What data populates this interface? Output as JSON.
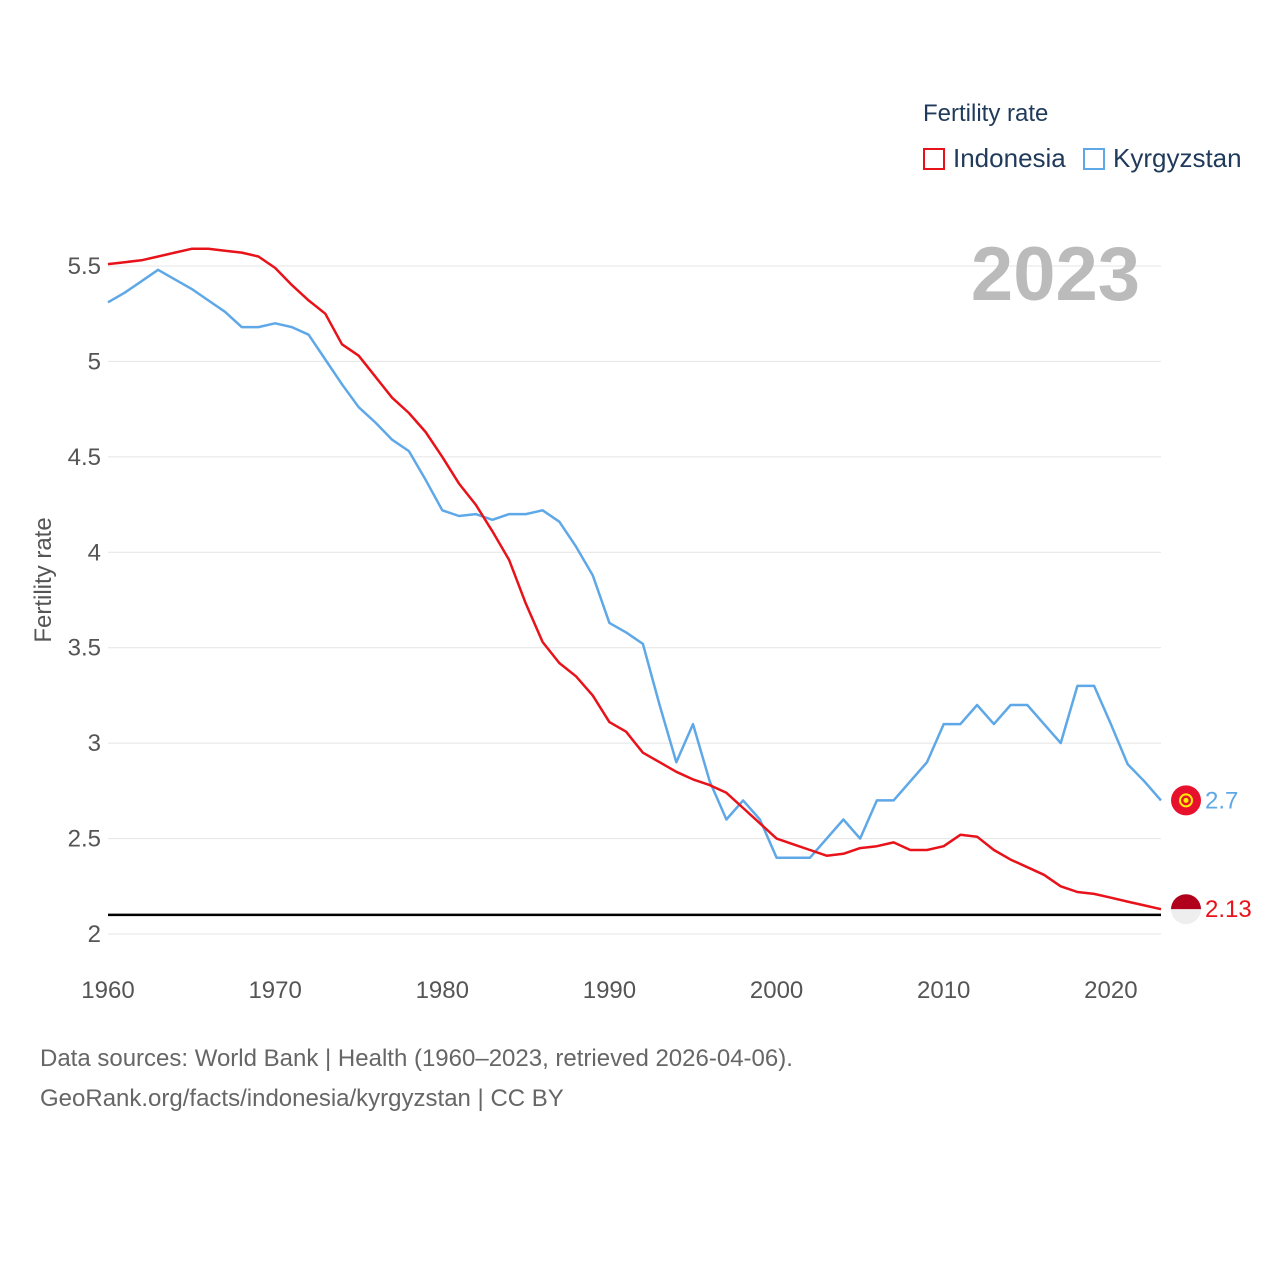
{
  "legend": {
    "title": "Fertility rate",
    "items": [
      {
        "label": "Indonesia",
        "color": "#e8131a"
      },
      {
        "label": "Kyrgyzstan",
        "color": "#5fa8e8"
      }
    ]
  },
  "year_label": "2023",
  "source": {
    "line1": "Data sources: World Bank | Health (1960–2023, retrieved 2026-04-06).",
    "line2": "GeoRank.org/facts/indonesia/kyrgyzstan | CC BY"
  },
  "chart_data": {
    "type": "line",
    "title": "Fertility rate",
    "xlabel": "",
    "ylabel": "Fertility rate",
    "xlim": [
      1960,
      2023
    ],
    "ylim": [
      2,
      5.7
    ],
    "xticks": [
      1960,
      1970,
      1980,
      1990,
      2000,
      2010,
      2020
    ],
    "yticks": [
      2,
      2.5,
      3,
      3.5,
      4,
      4.5,
      5,
      5.5
    ],
    "ytick_labels": [
      "2",
      "2.5",
      "3",
      "3.5",
      "4",
      "4.5",
      "5",
      "5.5"
    ],
    "grid": true,
    "reference_line": 2.1,
    "x": [
      1960,
      1961,
      1962,
      1963,
      1964,
      1965,
      1966,
      1967,
      1968,
      1969,
      1970,
      1971,
      1972,
      1973,
      1974,
      1975,
      1976,
      1977,
      1978,
      1979,
      1980,
      1981,
      1982,
      1983,
      1984,
      1985,
      1986,
      1987,
      1988,
      1989,
      1990,
      1991,
      1992,
      1993,
      1994,
      1995,
      1996,
      1997,
      1998,
      1999,
      2000,
      2001,
      2002,
      2003,
      2004,
      2005,
      2006,
      2007,
      2008,
      2009,
      2010,
      2011,
      2012,
      2013,
      2014,
      2015,
      2016,
      2017,
      2018,
      2019,
      2020,
      2021,
      2022,
      2023
    ],
    "series": [
      {
        "name": "Indonesia",
        "color": "#e8131a",
        "end_label": "2.13",
        "values": [
          5.51,
          5.52,
          5.53,
          5.55,
          5.57,
          5.59,
          5.59,
          5.58,
          5.57,
          5.55,
          5.49,
          5.4,
          5.32,
          5.25,
          5.09,
          5.03,
          4.92,
          4.81,
          4.73,
          4.63,
          4.5,
          4.36,
          4.25,
          4.11,
          3.96,
          3.73,
          3.53,
          3.42,
          3.35,
          3.25,
          3.11,
          3.06,
          2.95,
          2.9,
          2.85,
          2.81,
          2.78,
          2.74,
          2.66,
          2.58,
          2.5,
          2.47,
          2.44,
          2.41,
          2.42,
          2.45,
          2.46,
          2.48,
          2.44,
          2.44,
          2.46,
          2.52,
          2.51,
          2.44,
          2.39,
          2.35,
          2.31,
          2.25,
          2.22,
          2.21,
          2.19,
          2.17,
          2.15,
          2.13
        ]
      },
      {
        "name": "Kyrgyzstan",
        "color": "#5fa8e8",
        "end_label": "2.7",
        "values": [
          5.31,
          5.36,
          5.42,
          5.48,
          5.43,
          5.38,
          5.32,
          5.26,
          5.18,
          5.18,
          5.2,
          5.18,
          5.14,
          5.01,
          4.88,
          4.76,
          4.68,
          4.59,
          4.53,
          4.38,
          4.22,
          4.19,
          4.2,
          4.17,
          4.2,
          4.2,
          4.22,
          4.16,
          4.03,
          3.88,
          3.63,
          3.58,
          3.52,
          3.2,
          2.9,
          3.1,
          2.8,
          2.6,
          2.7,
          2.6,
          2.4,
          2.4,
          2.4,
          2.5,
          2.6,
          2.5,
          2.7,
          2.7,
          2.8,
          2.9,
          3.1,
          3.1,
          3.2,
          3.1,
          3.2,
          3.2,
          3.1,
          3.0,
          3.3,
          3.3,
          3.1,
          2.89,
          2.8,
          2.7
        ]
      }
    ]
  }
}
